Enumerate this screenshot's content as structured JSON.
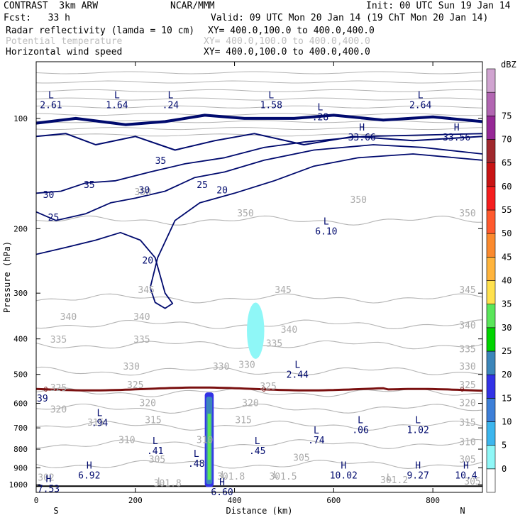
{
  "header": {
    "title": "CONTRAST  3km ARW",
    "center": "NCAR/MMM",
    "init": "Init: 00 UTC Sun 19 Jan 14",
    "fcst": "Fcst:   33 h",
    "valid": "Valid: 09 UTC Mon 20 Jan 14 (19 ChT Mon 20 Jan 14)",
    "fields": [
      {
        "name": "Radar reflectivity (lamda = 10 cm)",
        "xy": "XY= 400.0,100.0 to 400.0,400.0",
        "color": "#000000"
      },
      {
        "name": "Potential temperature",
        "xy": "XY= 400.0,100.0 to 400.0,400.0",
        "color": "#bdbdbd"
      },
      {
        "name": "Horizontal wind speed",
        "xy": "XY= 400.0,100.0 to 400.0,400.0",
        "color": "#000000"
      }
    ]
  },
  "chart_data": {
    "type": "contour",
    "xlabel": "Distance (km)",
    "ylabel": "Pressure (hPa)",
    "xlim": [
      0,
      900
    ],
    "ylim": [
      1050,
      70
    ],
    "y_scale": "log",
    "x_ticks": [
      0,
      200,
      400,
      600,
      800
    ],
    "y_ticks": [
      100,
      200,
      300,
      400,
      500,
      600,
      700,
      800,
      900,
      1000
    ],
    "x_end_labels": {
      "left": "S",
      "right": "N"
    },
    "colorbar": {
      "unit": "dBZ",
      "levels": [
        0,
        5,
        10,
        15,
        20,
        25,
        30,
        35,
        40,
        45,
        50,
        55,
        60,
        65,
        70,
        75
      ],
      "colors": [
        "#ffffff",
        "#8ff7f7",
        "#3cb6ee",
        "#3d7fd8",
        "#3232e6",
        "#3c86ba",
        "#00d400",
        "#5ae65a",
        "#ffe14d",
        "#ffb43c",
        "#fb8a2e",
        "#ff5a2e",
        "#f51e1e",
        "#c81414",
        "#a0282d",
        "#962896",
        "#b266b2",
        "#d0a4d0"
      ]
    },
    "theta_levels": [
      {
        "value": 305,
        "p": 880
      },
      {
        "value": 310,
        "p": 775
      },
      {
        "value": 315,
        "p": 690
      },
      {
        "value": 320,
        "p": 620
      },
      {
        "value": 325,
        "p": 560
      },
      {
        "value": 330,
        "p": 490
      },
      {
        "value": 335,
        "p": 415
      },
      {
        "value": 340,
        "p": 365
      },
      {
        "value": 345,
        "p": 310
      },
      {
        "value": 350,
        "p": 190
      }
    ],
    "theta_labels": [
      {
        "text": "305",
        "x": 244,
        "p": 870
      },
      {
        "text": "305",
        "x": 535,
        "p": 860
      },
      {
        "text": "305",
        "x": 870,
        "p": 870
      },
      {
        "text": "310",
        "x": 183,
        "p": 770
      },
      {
        "text": "310",
        "x": 340,
        "p": 770
      },
      {
        "text": "310",
        "x": 870,
        "p": 780
      },
      {
        "text": "315",
        "x": 120,
        "p": 690
      },
      {
        "text": "315",
        "x": 236,
        "p": 680
      },
      {
        "text": "315",
        "x": 418,
        "p": 680
      },
      {
        "text": "315",
        "x": 870,
        "p": 690
      },
      {
        "text": "320",
        "x": 45,
        "p": 635
      },
      {
        "text": "320",
        "x": 225,
        "p": 610
      },
      {
        "text": "320",
        "x": 432,
        "p": 610
      },
      {
        "text": "320",
        "x": 870,
        "p": 610
      },
      {
        "text": "325",
        "x": 45,
        "p": 555
      },
      {
        "text": "325",
        "x": 200,
        "p": 545
      },
      {
        "text": "325",
        "x": 468,
        "p": 550
      },
      {
        "text": "325",
        "x": 870,
        "p": 545
      },
      {
        "text": "330",
        "x": 192,
        "p": 485
      },
      {
        "text": "330",
        "x": 373,
        "p": 485
      },
      {
        "text": "330",
        "x": 425,
        "p": 480
      },
      {
        "text": "330",
        "x": 870,
        "p": 485
      },
      {
        "text": "335",
        "x": 45,
        "p": 410
      },
      {
        "text": "335",
        "x": 213,
        "p": 410
      },
      {
        "text": "335",
        "x": 480,
        "p": 420
      },
      {
        "text": "335",
        "x": 870,
        "p": 435
      },
      {
        "text": "340",
        "x": 65,
        "p": 355
      },
      {
        "text": "340",
        "x": 213,
        "p": 355
      },
      {
        "text": "340",
        "x": 510,
        "p": 385
      },
      {
        "text": "340",
        "x": 870,
        "p": 375
      },
      {
        "text": "345",
        "x": 222,
        "p": 300
      },
      {
        "text": "345",
        "x": 498,
        "p": 300
      },
      {
        "text": "345",
        "x": 870,
        "p": 300
      },
      {
        "text": "350",
        "x": 215,
        "p": 162
      },
      {
        "text": "350",
        "x": 422,
        "p": 185
      },
      {
        "text": "350",
        "x": 650,
        "p": 170
      },
      {
        "text": "350",
        "x": 870,
        "p": 185
      },
      {
        "text": "L",
        "x": 250,
        "p": 1000
      },
      {
        "text": "301.8",
        "x": 265,
        "p": 1010
      },
      {
        "text": "L",
        "x": 378,
        "p": 960
      },
      {
        "text": "301.8",
        "x": 393,
        "p": 970
      },
      {
        "text": "L",
        "x": 483,
        "p": 960
      },
      {
        "text": "301.5",
        "x": 498,
        "p": 970
      },
      {
        "text": "L",
        "x": 712,
        "p": 975
      },
      {
        "text": "301.2",
        "x": 722,
        "p": 990
      },
      {
        "text": "305",
        "x": 880,
        "p": 1000
      },
      {
        "text": "302",
        "x": 20,
        "p": 975
      }
    ],
    "wind_contours": [
      {
        "value": 20,
        "label_x": 375,
        "label_p": 160
      },
      {
        "value": 25,
        "label_x": 335,
        "label_p": 155
      },
      {
        "value": 30,
        "label_x": 218,
        "label_p": 160
      },
      {
        "value": 35,
        "label_x": 251,
        "label_p": 133
      },
      {
        "value": 20,
        "label_x": 225,
        "label_p": 249
      },
      {
        "value": 25,
        "label_x": 35,
        "label_p": 190
      },
      {
        "value": 30,
        "label_x": 25,
        "label_p": 165
      },
      {
        "value": 35,
        "label_x": 107,
        "label_p": 155
      }
    ],
    "pressure_extrema": [
      {
        "type": "L",
        "value": "2.61",
        "x": 30,
        "p": 88
      },
      {
        "type": "L",
        "value": "1.64",
        "x": 163,
        "p": 88
      },
      {
        "type": "L",
        "value": ".24",
        "x": 271,
        "p": 88
      },
      {
        "type": "L",
        "value": "1.58",
        "x": 474,
        "p": 88
      },
      {
        "type": "L",
        "value": ".28",
        "x": 573,
        "p": 95
      },
      {
        "type": "L",
        "value": "2.64",
        "x": 775,
        "p": 88
      },
      {
        "type": "H",
        "value": "33.66",
        "x": 657,
        "p": 108
      },
      {
        "type": "H",
        "value": "33.56",
        "x": 848,
        "p": 108
      },
      {
        "type": "L",
        "value": "6.10",
        "x": 585,
        "p": 195
      },
      {
        "type": "L",
        "value": "2.44",
        "x": 527,
        "p": 480
      },
      {
        "type": "L",
        "value": ".94",
        "x": 128,
        "p": 650
      },
      {
        "type": "L",
        "value": ".06",
        "x": 654,
        "p": 680
      },
      {
        "type": "L",
        "value": "1.02",
        "x": 770,
        "p": 680
      },
      {
        "type": "L",
        "value": ".74",
        "x": 565,
        "p": 725
      },
      {
        "type": "L",
        "value": ".41",
        "x": 240,
        "p": 775
      },
      {
        "type": "L",
        "value": ".45",
        "x": 446,
        "p": 775
      },
      {
        "type": "L",
        "value": ".48",
        "x": 323,
        "p": 840
      },
      {
        "type": "H",
        "value": "6.92",
        "x": 107,
        "p": 905
      },
      {
        "type": "H",
        "value": "10.02",
        "x": 620,
        "p": 905
      },
      {
        "type": "H",
        "value": "9.27",
        "x": 770,
        "p": 905
      },
      {
        "type": "H",
        "value": "10.4",
        "x": 867,
        "p": 905
      },
      {
        "type": "H",
        "value": "7.53",
        "x": 25,
        "p": 985
      },
      {
        "type": "H",
        "value": "6.60",
        "x": 375,
        "p": 1005
      }
    ],
    "freezing_level": {
      "label": "0",
      "p": 548,
      "left_value": "39"
    },
    "radar_echoes": [
      {
        "name": "upper",
        "x": [
          425,
          460
        ],
        "p": [
          330,
          470
        ],
        "dbz": 5
      },
      {
        "name": "column",
        "x": [
          340,
          358
        ],
        "p": [
          560,
          1015
        ],
        "dbz": 30
      }
    ]
  }
}
